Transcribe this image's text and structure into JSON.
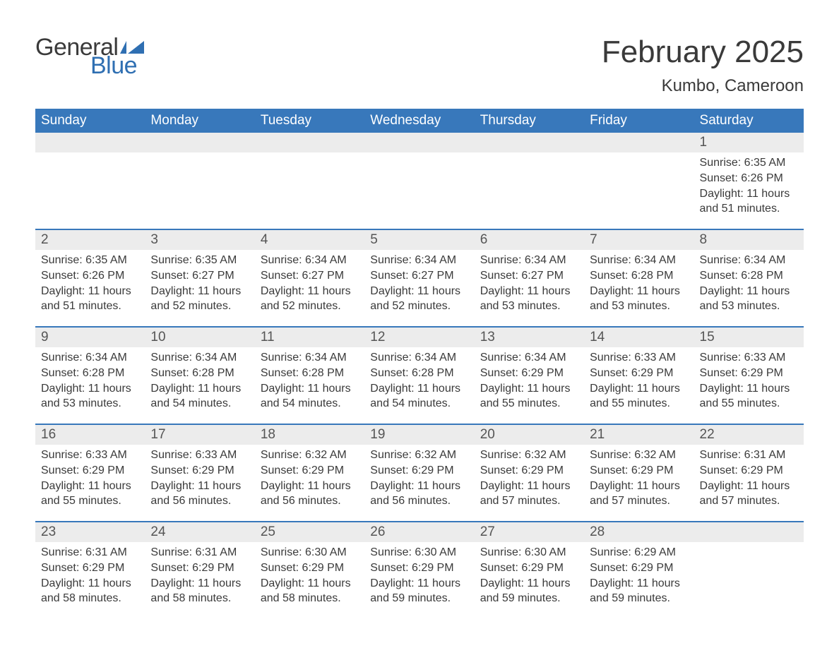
{
  "brand": {
    "general": "General",
    "blue": "Blue",
    "accent": "#2f6fb2"
  },
  "title": "February 2025",
  "location": "Kumbo, Cameroon",
  "colors": {
    "header_bg": "#3878bb",
    "header_text": "#ffffff",
    "daynum_bg": "#ececec",
    "body_text": "#3a3a3a",
    "week_border": "#3878bb",
    "page_bg": "#ffffff"
  },
  "weekdays": [
    "Sunday",
    "Monday",
    "Tuesday",
    "Wednesday",
    "Thursday",
    "Friday",
    "Saturday"
  ],
  "labels": {
    "sunrise": "Sunrise: ",
    "sunset": "Sunset: ",
    "daylight_prefix": "Daylight: ",
    "daylight_hours_word": " hours",
    "daylight_and": "and ",
    "daylight_minutes_word": " minutes."
  },
  "weeks": [
    {
      "days": [
        {
          "n": "",
          "sunrise": "",
          "sunset": "",
          "dl_h": "",
          "dl_m": ""
        },
        {
          "n": "",
          "sunrise": "",
          "sunset": "",
          "dl_h": "",
          "dl_m": ""
        },
        {
          "n": "",
          "sunrise": "",
          "sunset": "",
          "dl_h": "",
          "dl_m": ""
        },
        {
          "n": "",
          "sunrise": "",
          "sunset": "",
          "dl_h": "",
          "dl_m": ""
        },
        {
          "n": "",
          "sunrise": "",
          "sunset": "",
          "dl_h": "",
          "dl_m": ""
        },
        {
          "n": "",
          "sunrise": "",
          "sunset": "",
          "dl_h": "",
          "dl_m": ""
        },
        {
          "n": "1",
          "sunrise": "6:35 AM",
          "sunset": "6:26 PM",
          "dl_h": "11",
          "dl_m": "51"
        }
      ]
    },
    {
      "days": [
        {
          "n": "2",
          "sunrise": "6:35 AM",
          "sunset": "6:26 PM",
          "dl_h": "11",
          "dl_m": "51"
        },
        {
          "n": "3",
          "sunrise": "6:35 AM",
          "sunset": "6:27 PM",
          "dl_h": "11",
          "dl_m": "52"
        },
        {
          "n": "4",
          "sunrise": "6:34 AM",
          "sunset": "6:27 PM",
          "dl_h": "11",
          "dl_m": "52"
        },
        {
          "n": "5",
          "sunrise": "6:34 AM",
          "sunset": "6:27 PM",
          "dl_h": "11",
          "dl_m": "52"
        },
        {
          "n": "6",
          "sunrise": "6:34 AM",
          "sunset": "6:27 PM",
          "dl_h": "11",
          "dl_m": "53"
        },
        {
          "n": "7",
          "sunrise": "6:34 AM",
          "sunset": "6:28 PM",
          "dl_h": "11",
          "dl_m": "53"
        },
        {
          "n": "8",
          "sunrise": "6:34 AM",
          "sunset": "6:28 PM",
          "dl_h": "11",
          "dl_m": "53"
        }
      ]
    },
    {
      "days": [
        {
          "n": "9",
          "sunrise": "6:34 AM",
          "sunset": "6:28 PM",
          "dl_h": "11",
          "dl_m": "53"
        },
        {
          "n": "10",
          "sunrise": "6:34 AM",
          "sunset": "6:28 PM",
          "dl_h": "11",
          "dl_m": "54"
        },
        {
          "n": "11",
          "sunrise": "6:34 AM",
          "sunset": "6:28 PM",
          "dl_h": "11",
          "dl_m": "54"
        },
        {
          "n": "12",
          "sunrise": "6:34 AM",
          "sunset": "6:28 PM",
          "dl_h": "11",
          "dl_m": "54"
        },
        {
          "n": "13",
          "sunrise": "6:34 AM",
          "sunset": "6:29 PM",
          "dl_h": "11",
          "dl_m": "55"
        },
        {
          "n": "14",
          "sunrise": "6:33 AM",
          "sunset": "6:29 PM",
          "dl_h": "11",
          "dl_m": "55"
        },
        {
          "n": "15",
          "sunrise": "6:33 AM",
          "sunset": "6:29 PM",
          "dl_h": "11",
          "dl_m": "55"
        }
      ]
    },
    {
      "days": [
        {
          "n": "16",
          "sunrise": "6:33 AM",
          "sunset": "6:29 PM",
          "dl_h": "11",
          "dl_m": "55"
        },
        {
          "n": "17",
          "sunrise": "6:33 AM",
          "sunset": "6:29 PM",
          "dl_h": "11",
          "dl_m": "56"
        },
        {
          "n": "18",
          "sunrise": "6:32 AM",
          "sunset": "6:29 PM",
          "dl_h": "11",
          "dl_m": "56"
        },
        {
          "n": "19",
          "sunrise": "6:32 AM",
          "sunset": "6:29 PM",
          "dl_h": "11",
          "dl_m": "56"
        },
        {
          "n": "20",
          "sunrise": "6:32 AM",
          "sunset": "6:29 PM",
          "dl_h": "11",
          "dl_m": "57"
        },
        {
          "n": "21",
          "sunrise": "6:32 AM",
          "sunset": "6:29 PM",
          "dl_h": "11",
          "dl_m": "57"
        },
        {
          "n": "22",
          "sunrise": "6:31 AM",
          "sunset": "6:29 PM",
          "dl_h": "11",
          "dl_m": "57"
        }
      ]
    },
    {
      "days": [
        {
          "n": "23",
          "sunrise": "6:31 AM",
          "sunset": "6:29 PM",
          "dl_h": "11",
          "dl_m": "58"
        },
        {
          "n": "24",
          "sunrise": "6:31 AM",
          "sunset": "6:29 PM",
          "dl_h": "11",
          "dl_m": "58"
        },
        {
          "n": "25",
          "sunrise": "6:30 AM",
          "sunset": "6:29 PM",
          "dl_h": "11",
          "dl_m": "58"
        },
        {
          "n": "26",
          "sunrise": "6:30 AM",
          "sunset": "6:29 PM",
          "dl_h": "11",
          "dl_m": "59"
        },
        {
          "n": "27",
          "sunrise": "6:30 AM",
          "sunset": "6:29 PM",
          "dl_h": "11",
          "dl_m": "59"
        },
        {
          "n": "28",
          "sunrise": "6:29 AM",
          "sunset": "6:29 PM",
          "dl_h": "11",
          "dl_m": "59"
        },
        {
          "n": "",
          "sunrise": "",
          "sunset": "",
          "dl_h": "",
          "dl_m": ""
        }
      ]
    }
  ]
}
